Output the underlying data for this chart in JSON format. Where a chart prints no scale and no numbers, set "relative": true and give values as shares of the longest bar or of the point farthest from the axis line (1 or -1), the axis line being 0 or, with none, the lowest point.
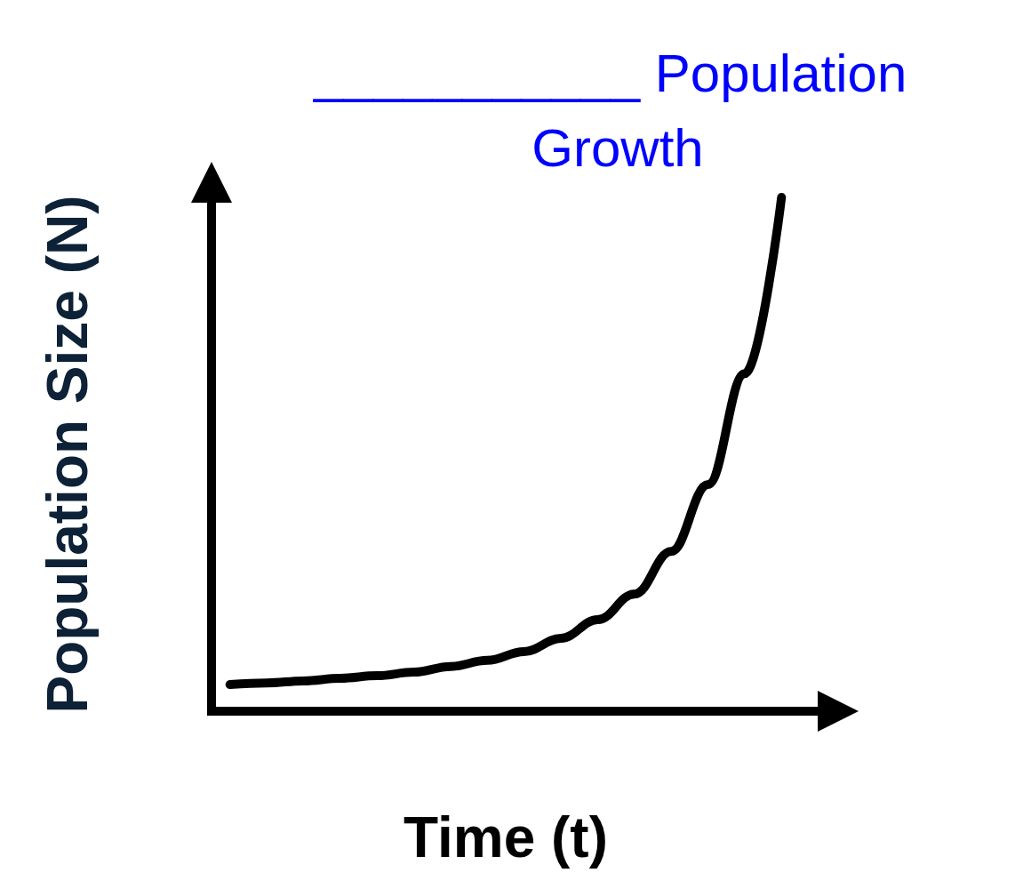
{
  "chart_data": {
    "type": "line",
    "title": "___________ Population Growth",
    "xlabel": "Time (t)",
    "ylabel": "Population Size (N)",
    "relative": true,
    "grid": false,
    "line_style": "solid",
    "categories": [
      null,
      null,
      null,
      null,
      null,
      null,
      null,
      null,
      null,
      null,
      null,
      null,
      null,
      null,
      null,
      null
    ],
    "series": [
      {
        "color": "#000000",
        "values": [
          0.052,
          0.055,
          0.059,
          0.064,
          0.069,
          0.076,
          0.087,
          0.099,
          0.116,
          0.142,
          0.178,
          0.228,
          0.311,
          0.441,
          0.657,
          1
        ]
      }
    ]
  }
}
